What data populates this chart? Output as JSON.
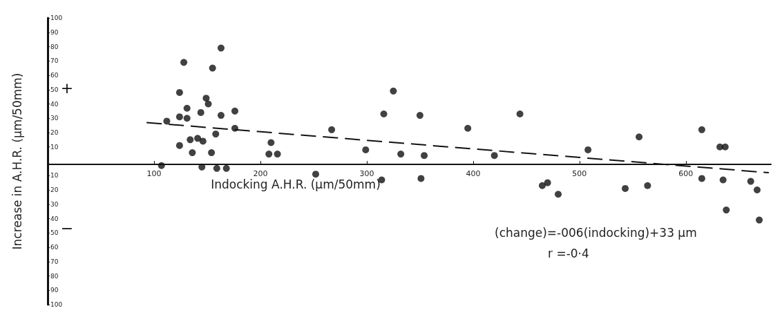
{
  "chart_data": {
    "type": "scatter",
    "xlabel": "Indocking A.H.R. (µm/50mm)",
    "ylabel": "Increase in A.H.R. (µm/50mm)",
    "annotations": [
      "+",
      "−",
      "(change)=-006(indocking)+33 µm",
      "r =-0·4"
    ],
    "xlim": [
      0,
      680
    ],
    "xticks": [
      100,
      200,
      300,
      400,
      500,
      600
    ],
    "ylim": [
      -100,
      100
    ],
    "yticks": [
      {
        "value": -100,
        "label": "100"
      },
      {
        "value": -90,
        "label": "90"
      },
      {
        "value": -80,
        "label": "80"
      },
      {
        "value": -70,
        "label": "70"
      },
      {
        "value": -60,
        "label": "60"
      },
      {
        "value": -50,
        "label": "50"
      },
      {
        "value": -40,
        "label": "40"
      },
      {
        "value": -30,
        "label": "30"
      },
      {
        "value": -20,
        "label": "20"
      },
      {
        "value": -10,
        "label": "10"
      },
      10,
      20,
      30,
      40,
      50,
      60,
      70,
      80,
      90,
      100
    ],
    "grid": false,
    "marker": "circle",
    "series": [
      {
        "color": "#111111",
        "x": [
          107,
          112,
          124,
          128,
          124,
          131,
          131,
          124,
          134,
          136,
          141,
          144,
          146,
          145,
          149,
          151,
          154,
          155,
          158,
          159,
          163,
          163,
          168,
          176,
          176,
          210,
          208,
          216,
          252,
          267,
          299,
          314,
          316,
          325,
          332,
          350,
          351,
          354,
          395,
          420,
          444,
          465,
          470,
          480,
          508,
          543,
          556,
          564,
          615,
          615,
          632,
          637,
          635,
          638,
          661,
          667,
          669
        ],
        "values": [
          -3,
          28,
          48,
          69,
          31,
          37,
          30,
          11,
          15,
          6,
          16,
          34,
          14,
          -4,
          44,
          40,
          6,
          65,
          19,
          -5,
          79,
          32,
          -5,
          35,
          23,
          13,
          5,
          5,
          -9,
          22,
          8,
          -13,
          33,
          49,
          5,
          32,
          -12,
          4,
          23,
          4,
          33,
          -17,
          -15,
          -23,
          8,
          -19,
          17,
          -17,
          22,
          -12,
          10,
          10,
          -13,
          -34,
          -14,
          -20,
          -41
        ]
      },
      {
        "type": "line",
        "color": "#111111",
        "line_style": "dashed",
        "marker": "none",
        "x": [
          93,
          678
        ],
        "values": [
          27,
          -8
        ]
      }
    ]
  }
}
